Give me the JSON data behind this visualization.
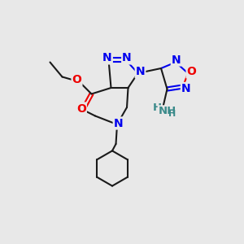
{
  "background_color": "#e8e8e8",
  "atom_colors": {
    "N": "#0000ee",
    "O": "#ee0000",
    "C": "#1a1a1a",
    "NH": "#3a8a8a"
  },
  "bond_color": "#1a1a1a",
  "lw": 1.5
}
